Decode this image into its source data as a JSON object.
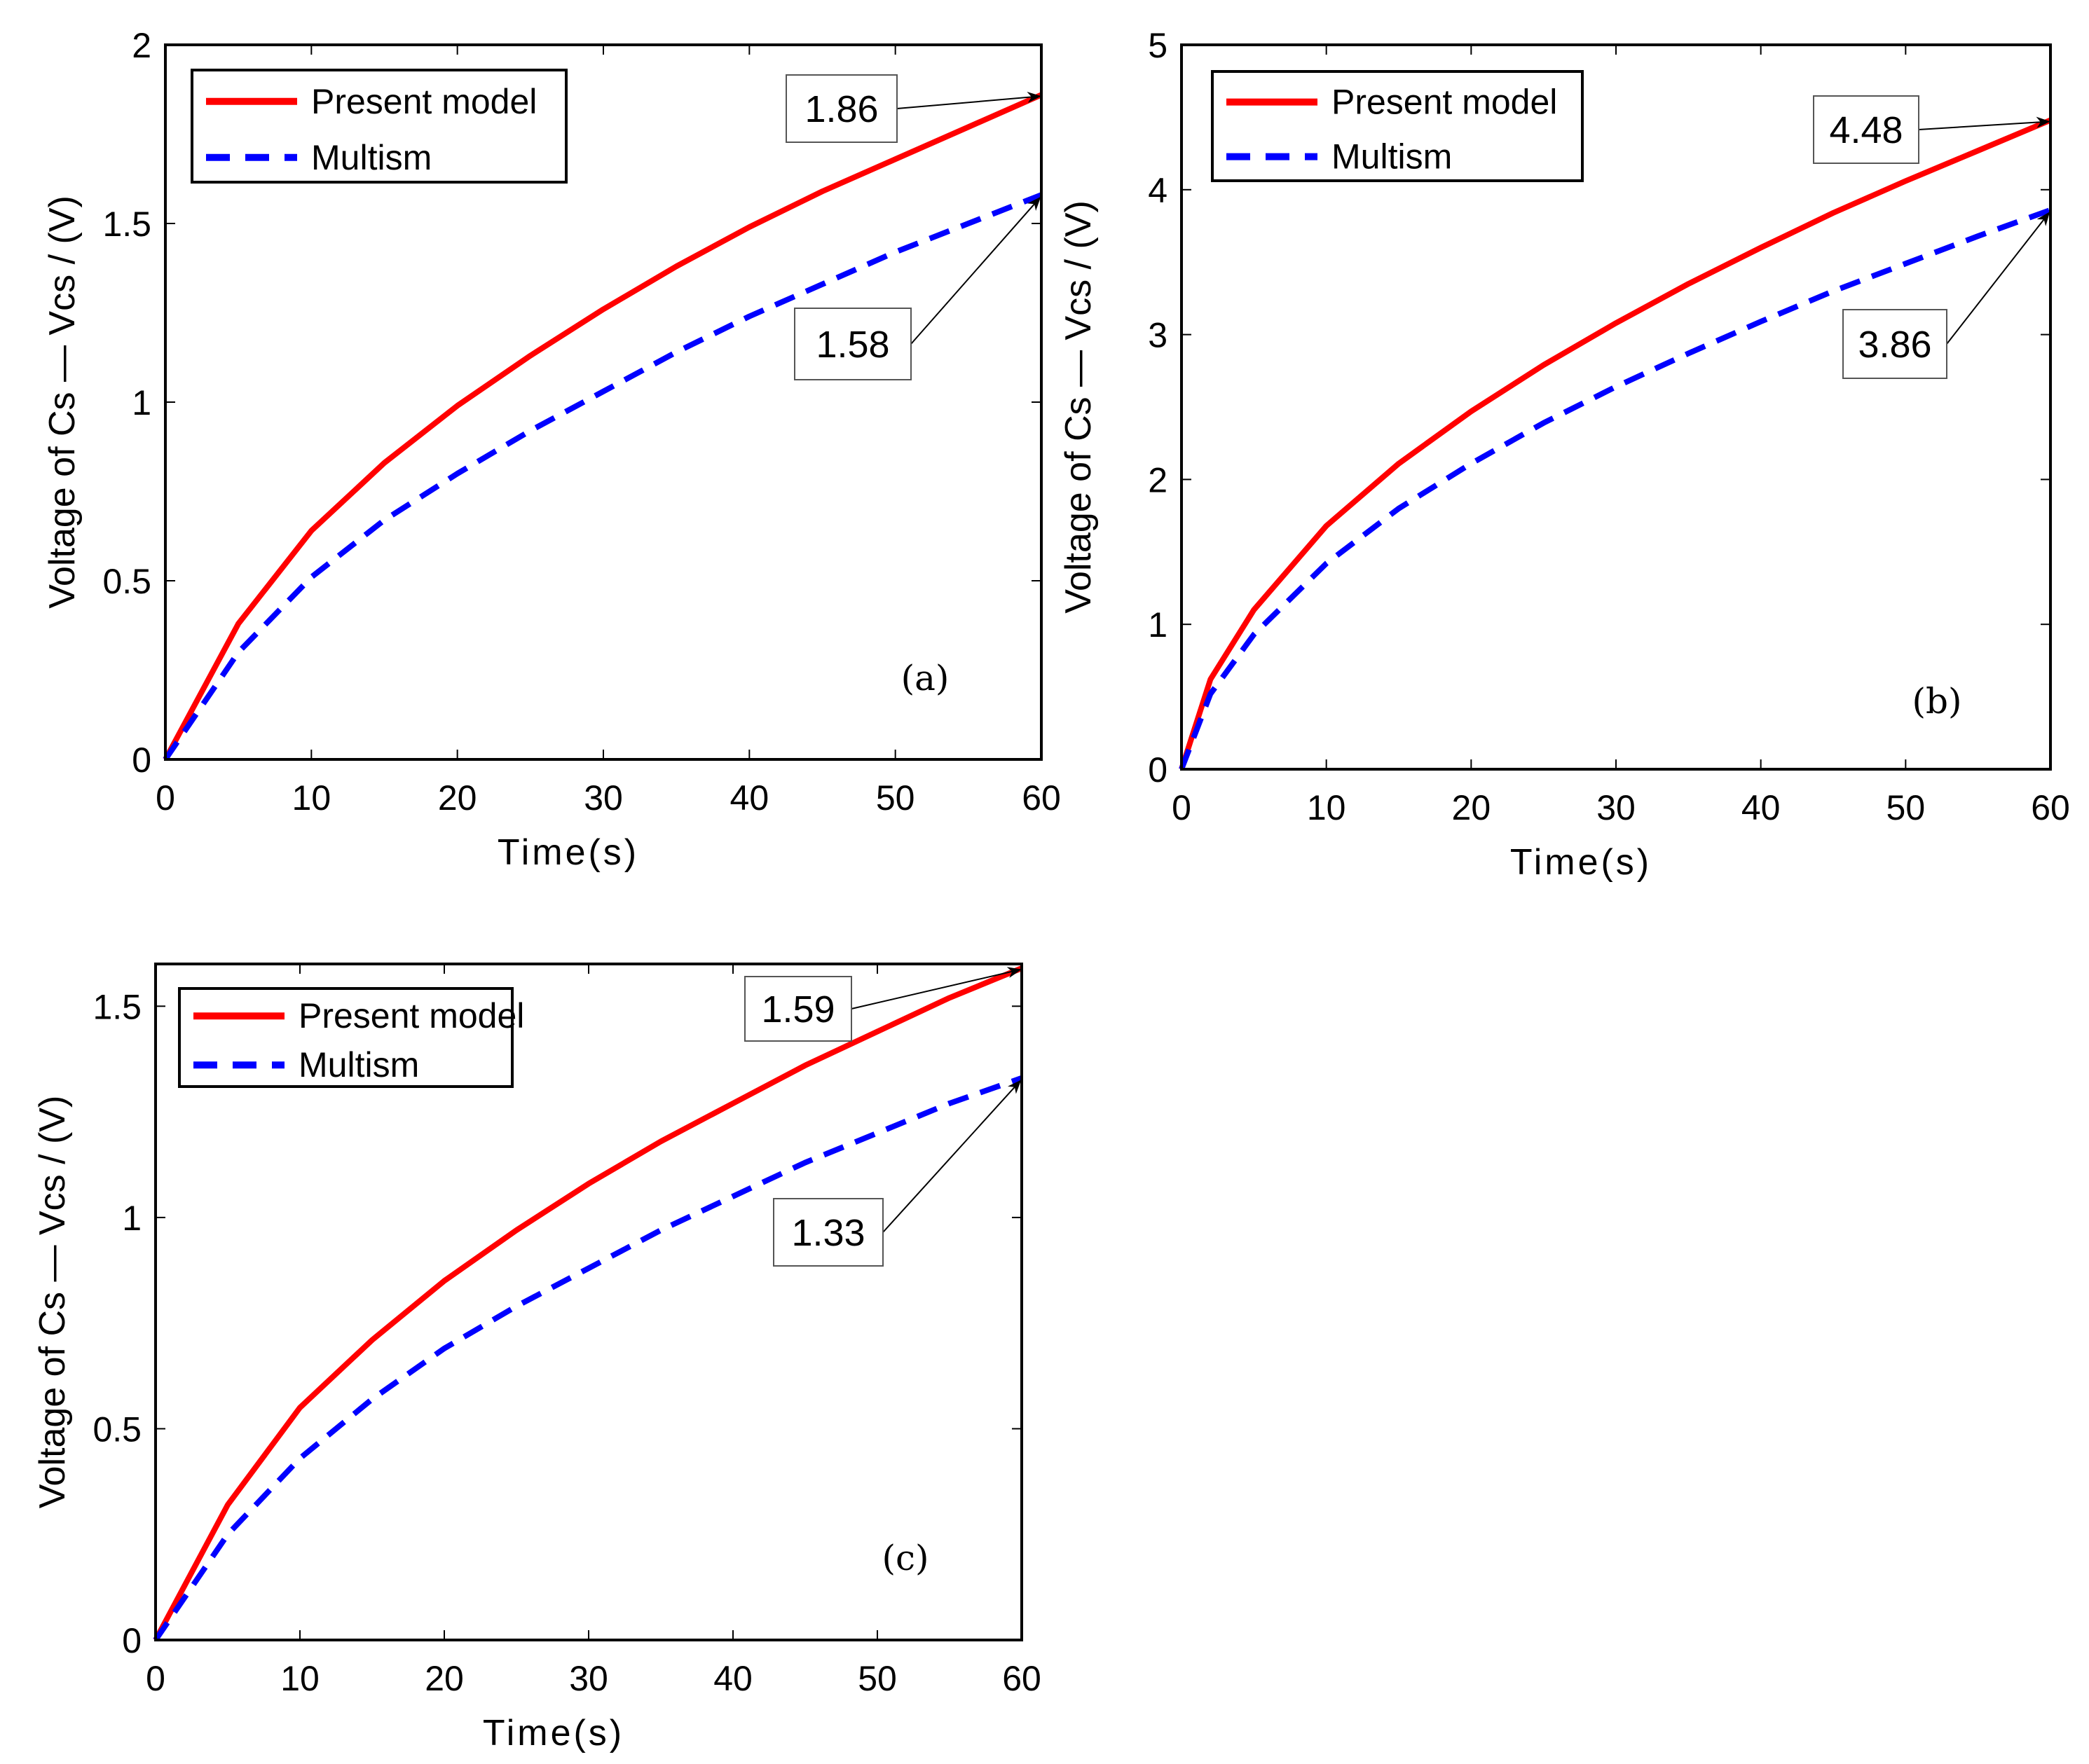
{
  "figure": {
    "background": "#ffffff",
    "series_colors": {
      "present_model": "#ff0000",
      "multism": "#0000ff"
    }
  },
  "chart_data": [
    {
      "id": "a",
      "type": "line",
      "panel_label": "(a)",
      "xlabel": "Time(s)",
      "ylabel": "Voltage of Cs — Vcs / (V)",
      "xlim": [
        0,
        60
      ],
      "ylim": [
        0,
        2
      ],
      "xticks": [
        0,
        10,
        20,
        30,
        40,
        50,
        60
      ],
      "yticks": [
        0,
        0.5,
        1,
        1.5,
        2
      ],
      "ytick_labels": [
        "0",
        "0.5",
        "1",
        "1.5",
        "2"
      ],
      "legend": {
        "position": "top-left",
        "entries": [
          "Present model",
          "Multism"
        ]
      },
      "series": [
        {
          "name": "Present model",
          "style": "solid",
          "color": "#ff0000",
          "x": [
            0,
            5,
            10,
            15,
            20,
            25,
            30,
            35,
            40,
            45,
            50,
            55,
            60
          ],
          "y": [
            0,
            0.38,
            0.64,
            0.83,
            0.99,
            1.13,
            1.26,
            1.38,
            1.49,
            1.59,
            1.68,
            1.77,
            1.86
          ]
        },
        {
          "name": "Multism",
          "style": "dashed",
          "color": "#0000ff",
          "x": [
            0,
            5,
            10,
            15,
            20,
            25,
            30,
            35,
            40,
            45,
            50,
            55,
            60
          ],
          "y": [
            0,
            0.3,
            0.51,
            0.67,
            0.8,
            0.92,
            1.03,
            1.14,
            1.24,
            1.33,
            1.42,
            1.5,
            1.58
          ]
        }
      ],
      "annotations": [
        {
          "text": "1.86",
          "x": 60,
          "y": 1.86
        },
        {
          "text": "1.58",
          "x": 60,
          "y": 1.58
        }
      ]
    },
    {
      "id": "b",
      "type": "line",
      "panel_label": "(b)",
      "xlabel": "Time(s)",
      "ylabel": "Voltage of Cs — Vcs / (V)",
      "xlim": [
        0,
        60
      ],
      "ylim": [
        0,
        5
      ],
      "xticks": [
        0,
        10,
        20,
        30,
        40,
        50,
        60
      ],
      "yticks": [
        0,
        1,
        2,
        3,
        4,
        5
      ],
      "ytick_labels": [
        "0",
        "1",
        "2",
        "3",
        "4",
        "5"
      ],
      "legend": {
        "position": "top-left",
        "entries": [
          "Present model",
          "Multism"
        ]
      },
      "series": [
        {
          "name": "Present model",
          "style": "solid",
          "color": "#ff0000",
          "x": [
            0,
            2,
            5,
            10,
            15,
            20,
            25,
            30,
            35,
            40,
            45,
            50,
            55,
            60
          ],
          "y": [
            0,
            0.62,
            1.1,
            1.68,
            2.11,
            2.47,
            2.79,
            3.08,
            3.35,
            3.6,
            3.84,
            4.06,
            4.27,
            4.48
          ]
        },
        {
          "name": "Multism",
          "style": "dashed",
          "color": "#0000ff",
          "x": [
            0,
            2,
            5,
            10,
            15,
            20,
            25,
            30,
            35,
            40,
            45,
            50,
            55,
            60
          ],
          "y": [
            0,
            0.52,
            0.93,
            1.42,
            1.8,
            2.11,
            2.39,
            2.64,
            2.87,
            3.09,
            3.3,
            3.49,
            3.68,
            3.86
          ]
        }
      ],
      "annotations": [
        {
          "text": "4.48",
          "x": 60,
          "y": 4.48
        },
        {
          "text": "3.86",
          "x": 60,
          "y": 3.86
        }
      ]
    },
    {
      "id": "c",
      "type": "line",
      "panel_label": "(c)",
      "xlabel": "Time(s)",
      "ylabel": "Voltage of Cs — Vcs / (V)",
      "xlim": [
        0,
        60
      ],
      "ylim": [
        0,
        1.6
      ],
      "xticks": [
        0,
        10,
        20,
        30,
        40,
        50,
        60
      ],
      "yticks": [
        0,
        0.5,
        1,
        1.5
      ],
      "ytick_labels": [
        "0",
        "0.5",
        "1",
        "1.5"
      ],
      "legend": {
        "position": "top-left",
        "entries": [
          "Present model",
          "Multism"
        ]
      },
      "series": [
        {
          "name": "Present model",
          "style": "solid",
          "color": "#ff0000",
          "x": [
            0,
            5,
            10,
            15,
            20,
            25,
            30,
            35,
            40,
            45,
            50,
            55,
            60
          ],
          "y": [
            0,
            0.32,
            0.55,
            0.71,
            0.85,
            0.97,
            1.08,
            1.18,
            1.27,
            1.36,
            1.44,
            1.52,
            1.59
          ]
        },
        {
          "name": "Multism",
          "style": "dashed",
          "color": "#0000ff",
          "x": [
            0,
            5,
            10,
            15,
            20,
            25,
            30,
            35,
            40,
            45,
            50,
            55,
            60
          ],
          "y": [
            0,
            0.25,
            0.43,
            0.57,
            0.69,
            0.79,
            0.88,
            0.97,
            1.05,
            1.13,
            1.2,
            1.27,
            1.33
          ]
        }
      ],
      "annotations": [
        {
          "text": "1.59",
          "x": 60,
          "y": 1.59
        },
        {
          "text": "1.33",
          "x": 60,
          "y": 1.33
        }
      ]
    }
  ]
}
